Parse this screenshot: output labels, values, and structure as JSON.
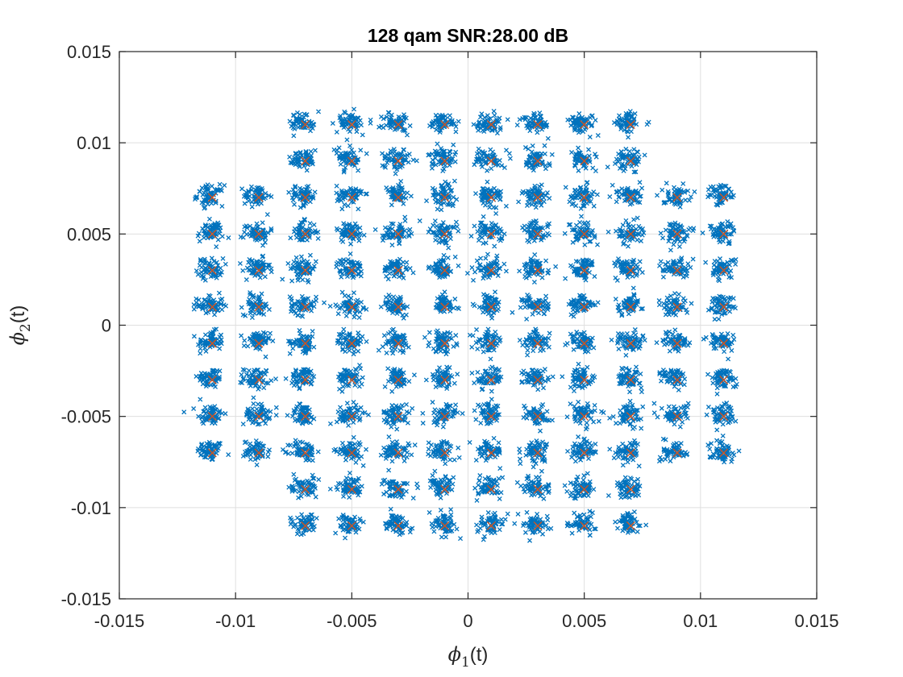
{
  "chart_data": {
    "type": "scatter",
    "title": "128 qam  SNR:28.00 dB",
    "xlabel": {
      "prefix": "ϕ",
      "sub": "1",
      "suffix": "(t)"
    },
    "ylabel": {
      "prefix": "ϕ",
      "sub": "2",
      "suffix": "(t)"
    },
    "xlim": [
      -0.015,
      0.015
    ],
    "ylim": [
      -0.015,
      0.015
    ],
    "xticks": [
      -0.015,
      -0.01,
      -0.005,
      0,
      0.005,
      0.01,
      0.015
    ],
    "yticks": [
      -0.015,
      -0.01,
      -0.005,
      0,
      0.005,
      0.01,
      0.015
    ],
    "xtick_labels": [
      "-0.015",
      "-0.01",
      "-0.005",
      "0",
      "0.005",
      "0.01",
      "0.015"
    ],
    "ytick_labels": [
      "-0.015",
      "-0.01",
      "-0.005",
      "0",
      "0.005",
      "0.01",
      "0.015"
    ],
    "grid": true,
    "box": true,
    "marker": "x",
    "colors": {
      "received": "#0072BD",
      "ideal": "#D95319",
      "grid": "#DFDFDF",
      "axis": "#262626"
    },
    "constellation": {
      "order": 128,
      "inner_levels": [
        -0.011,
        -0.009,
        -0.007,
        -0.005,
        -0.003,
        -0.001,
        0.001,
        0.003,
        0.005,
        0.007,
        0.009,
        0.011
      ],
      "outer_x_levels": [
        -0.007,
        -0.005,
        -0.003,
        -0.001,
        0.001,
        0.003,
        0.005,
        0.007
      ],
      "inner_y_levels": [
        -0.007,
        -0.005,
        -0.003,
        -0.001,
        0.001,
        0.003,
        0.005,
        0.007
      ],
      "outer_y_levels": [
        -0.011,
        -0.009,
        0.009,
        0.011
      ],
      "snr_db": 28.0,
      "noise_std_per_dim": 0.00028,
      "received_points_per_symbol": 60
    }
  }
}
